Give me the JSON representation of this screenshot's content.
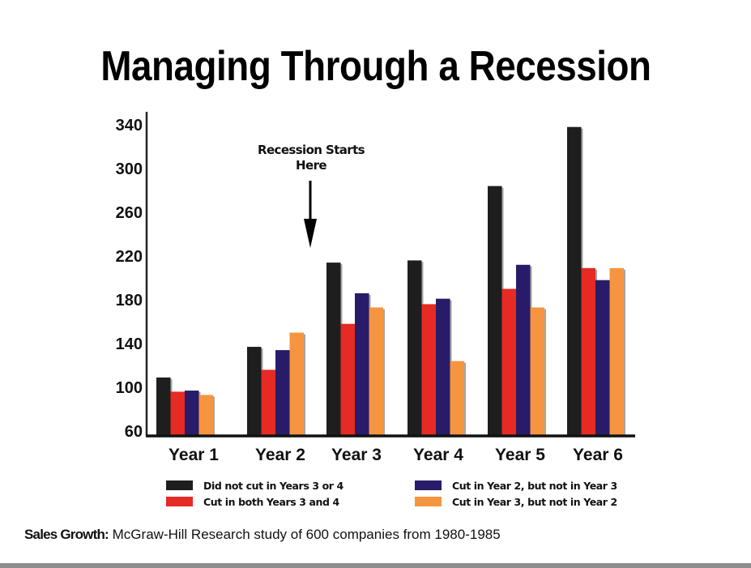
{
  "chart_data": {
    "type": "bar",
    "title": "Managing Through a Recession",
    "xlabel": "",
    "ylabel": "",
    "ylim": [
      60,
      340
    ],
    "yticks": [
      "340",
      "300",
      "260",
      "220",
      "180",
      "140",
      "100",
      "60"
    ],
    "ytick_values": [
      340,
      300,
      260,
      220,
      180,
      140,
      100,
      60
    ],
    "categories": [
      "Year 1",
      "Year 2",
      "Year 3",
      "Year 4",
      "Year 5",
      "Year 6"
    ],
    "series": [
      {
        "name": "Did not cut in Years 3 or 4",
        "color": "#1e1e1e",
        "values": [
          109,
          137,
          214,
          216,
          284,
          338
        ]
      },
      {
        "name": "Cut in both Years 3 and 4",
        "color": "#e62a24",
        "values": [
          96,
          116,
          158,
          176,
          190,
          209
        ]
      },
      {
        "name": "Cut in Year 2, but not in Year 3",
        "color": "#281c6a",
        "values": [
          97,
          134,
          186,
          181,
          212,
          198
        ]
      },
      {
        "name": "Cut in Year 3, but not in Year 2",
        "color": "#f6953f",
        "values": [
          93,
          150,
          173,
          124,
          173,
          209
        ]
      }
    ],
    "legend_order": [
      0,
      2,
      1,
      3
    ],
    "legend_placement": "bottom",
    "grid": false,
    "annotation": {
      "text_line1": "Recession Starts",
      "text_line2": "Here",
      "points_to": "Year 3"
    }
  },
  "caption": {
    "label": "Sales Growth",
    "separator": ":",
    "text": " McGraw-Hill Research study of 600 companies from 1980-1985"
  }
}
